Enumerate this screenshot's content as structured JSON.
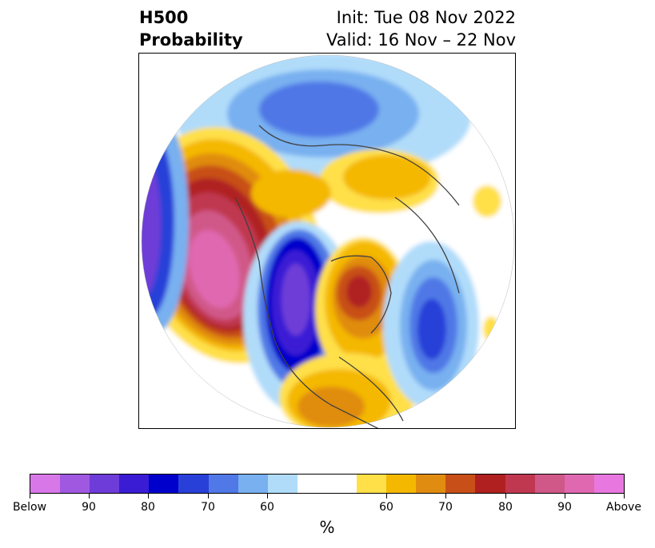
{
  "header": {
    "field": "H500",
    "product": "Probability",
    "init": "Init: Tue 08 Nov 2022",
    "valid": "Valid: 16 Nov – 22 Nov"
  },
  "map": {
    "projection": "north-polar-stereographic",
    "features": [
      {
        "name": "arctic-below-anomaly",
        "category": "Below"
      },
      {
        "name": "north-pacific-above-anomaly",
        "category": "Above"
      },
      {
        "name": "alaska-above-anomaly",
        "category": "Above"
      },
      {
        "name": "western-canada-below-anomaly",
        "category": "Below"
      },
      {
        "name": "greenland-above-anomaly",
        "category": "Above"
      },
      {
        "name": "eastern-us-above-anomaly",
        "category": "Above"
      },
      {
        "name": "atlantic-below-anomaly",
        "category": "Below"
      },
      {
        "name": "siberia-above-anomaly",
        "category": "Above"
      }
    ]
  },
  "colorbar": {
    "colors": [
      "#d878e8",
      "#a058e0",
      "#6e3cd8",
      "#3a1cd4",
      "#0000cc",
      "#2840d8",
      "#5078e6",
      "#78b0f0",
      "#b0dcfa",
      "#ffffff",
      "#ffffff",
      "#ffe048",
      "#f4b800",
      "#e08c10",
      "#c85018",
      "#b02020",
      "#c03850",
      "#d05888",
      "#e068b0",
      "#e878e0"
    ],
    "tick_labels": [
      "Below",
      "90",
      "80",
      "70",
      "60",
      "60",
      "70",
      "80",
      "90",
      "Above"
    ],
    "unit": "%"
  }
}
